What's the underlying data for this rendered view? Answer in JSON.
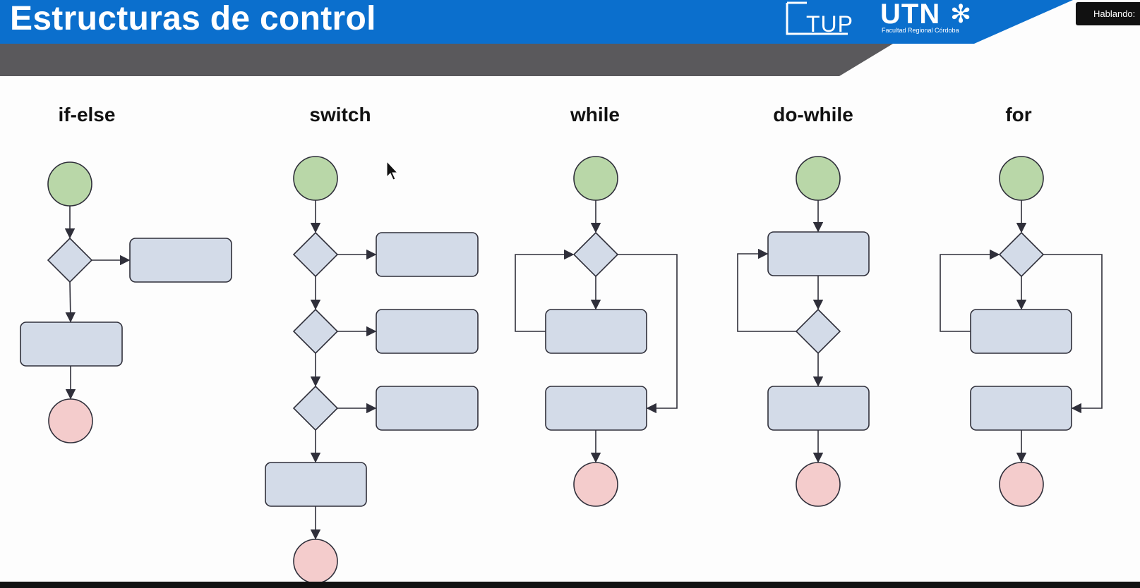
{
  "slide": {
    "title": "Estructuras de control",
    "logos": {
      "tup": "TUP",
      "utn": "UTN",
      "utn_subtitle": "Facultad Regional Córdoba"
    },
    "speaking_indicator": "Hablando:"
  },
  "diagrams": [
    {
      "id": "if-else",
      "title": "if-else"
    },
    {
      "id": "switch",
      "title": "switch"
    },
    {
      "id": "while",
      "title": "while"
    },
    {
      "id": "do-while",
      "title": "do-while"
    },
    {
      "id": "for",
      "title": "for"
    }
  ],
  "colors": {
    "header_blue": "#0b6fcd",
    "header_gray": "#5a595c",
    "start_node": "#b9d7a8",
    "end_node": "#f4cccc",
    "process_node": "#d3dbe8",
    "stroke": "#2f2f3a"
  },
  "icons": [
    "cursor-arrow-icon",
    "utn-emblem-icon",
    "tup-logo-frame-icon"
  ]
}
